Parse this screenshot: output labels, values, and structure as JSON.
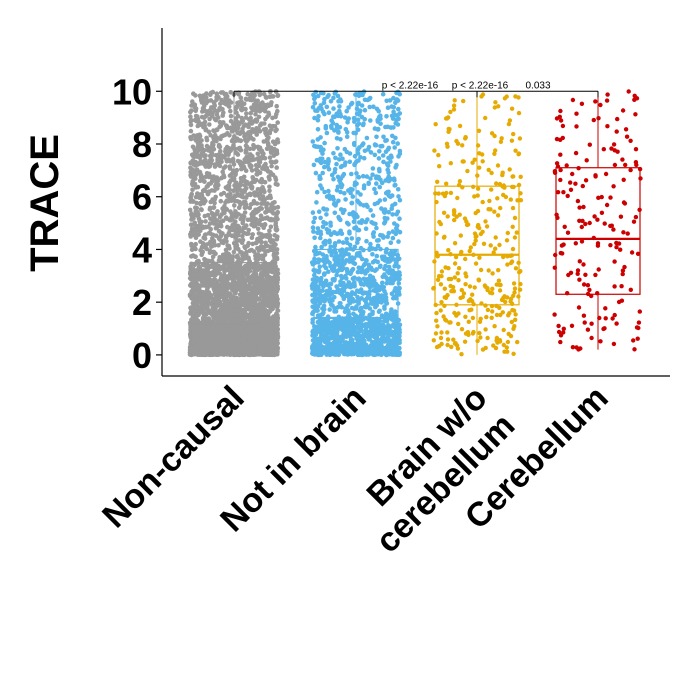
{
  "chart_data": {
    "type": "box",
    "ylabel": "TRACE",
    "xlabel": "",
    "ylim": [
      -0.8,
      12.4
    ],
    "yticks": [
      0,
      2,
      4,
      6,
      8,
      10
    ],
    "grid": false,
    "legend": "none",
    "categories": [
      "Non-causal",
      "Not in brain",
      "Brain w/o cerebellum",
      "Cerebellum"
    ],
    "series": [
      {
        "color": "#999999",
        "q1": 0.3,
        "median": 1.2,
        "q3": 3.5,
        "min": 0,
        "max": 10,
        "point_count": 5000
      },
      {
        "color": "#56B4E9",
        "q1": 0.3,
        "median": 1.4,
        "q3": 4.0,
        "min": 0,
        "max": 10,
        "point_count": 2000
      },
      {
        "color": "#E6AB02",
        "q1": 1.9,
        "median": 3.8,
        "q3": 6.4,
        "min": 0,
        "max": 10,
        "point_count": 350
      },
      {
        "color": "#CC0000",
        "q1": 2.3,
        "median": 4.4,
        "q3": 7.1,
        "min": 0.2,
        "max": 10,
        "point_count": 180
      }
    ],
    "comparisons": [
      {
        "from": "Non-causal",
        "to": "Brain w/o cerebellum",
        "label": "p < 2.22e-16"
      },
      {
        "from": "Non-causal",
        "to": "Cerebellum",
        "label": "p < 2.22e-16"
      },
      {
        "from": "Non-causal",
        "to": "Cerebellum",
        "label": "0.033"
      }
    ]
  }
}
